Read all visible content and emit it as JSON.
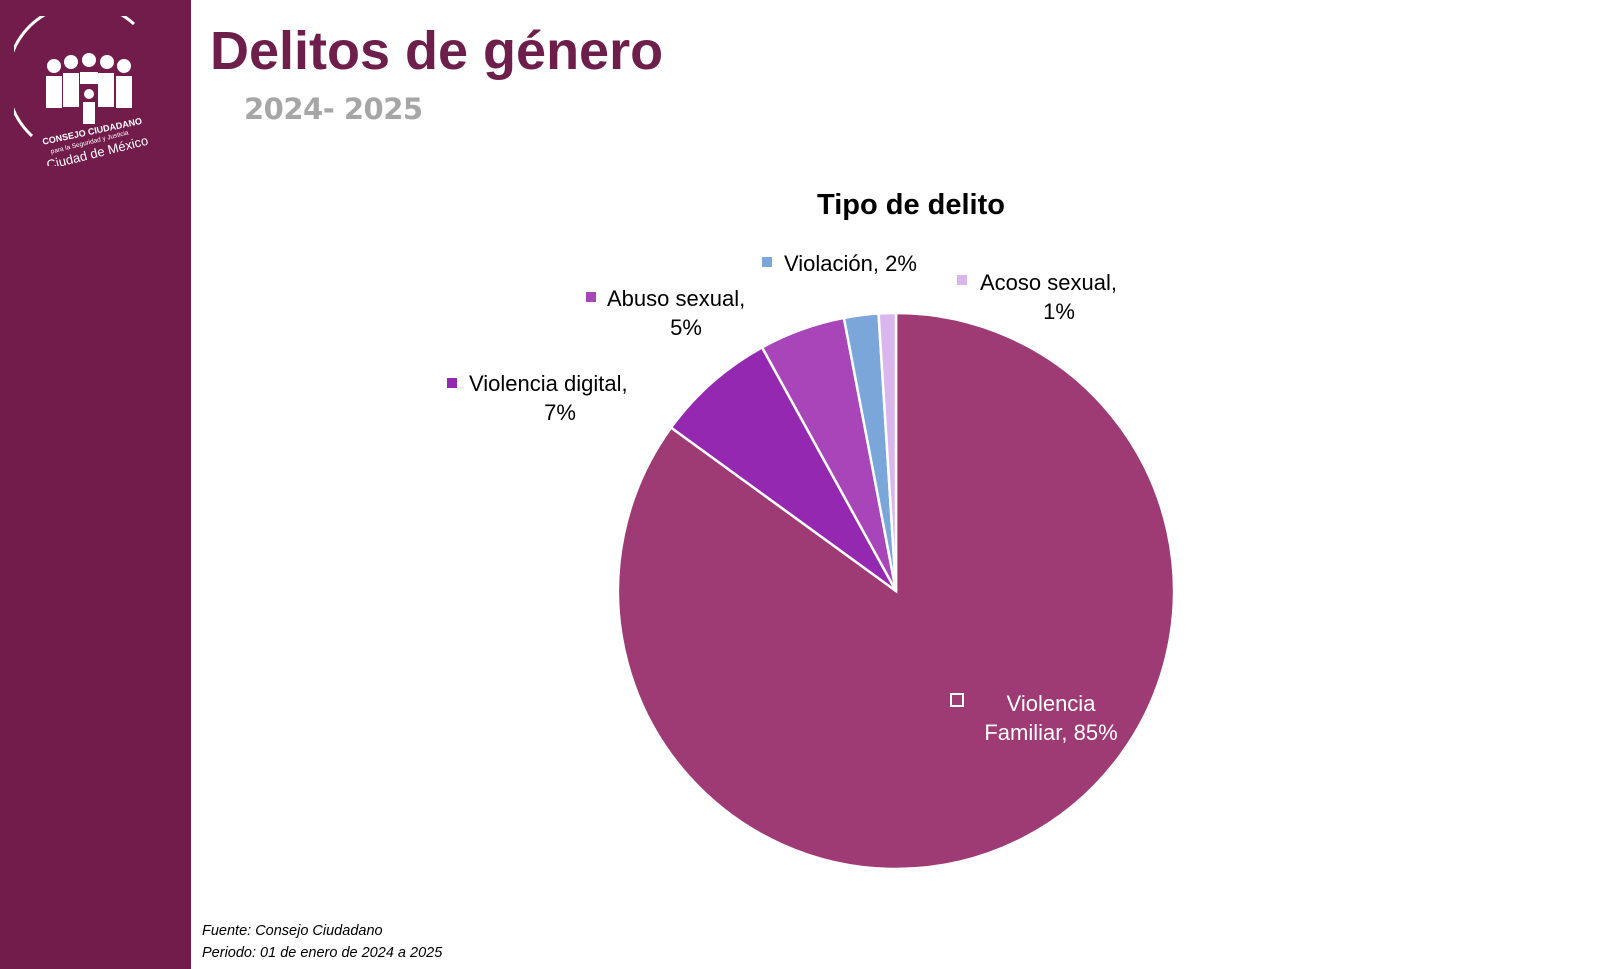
{
  "header": {
    "title": "Delitos de género",
    "subtitle": "2024- 2025"
  },
  "logo": {
    "line1": "CONSEJO CIUDADANO",
    "line2": "para la Seguridad y Justicia",
    "line3": "Ciudad de México"
  },
  "colors": {
    "sidebar": "#711c4b",
    "title": "#6e1e4b"
  },
  "chart_data": {
    "type": "pie",
    "title": "Tipo de delito",
    "start": "top, clockwise",
    "slices": [
      {
        "name": "Violencia Familiar",
        "value": 85,
        "label_lines": [
          "Violencia",
          "Familiar, 85%"
        ],
        "color": "#9e3a74",
        "label_color": "#ffffff"
      },
      {
        "name": "Violencia digital",
        "value": 7,
        "label_lines": [
          "Violencia digital,",
          "7%"
        ],
        "color": "#9528b0",
        "label_color": "#000000"
      },
      {
        "name": "Abuso sexual",
        "value": 5,
        "label_lines": [
          "Abuso sexual,",
          "5%"
        ],
        "color": "#a846b9",
        "label_color": "#000000"
      },
      {
        "name": "Violación",
        "value": 2,
        "label_lines": [
          "Violación, 2%"
        ],
        "color": "#7aa6d9",
        "label_color": "#000000"
      },
      {
        "name": "Acoso sexual",
        "value": 1,
        "label_lines": [
          "Acoso sexual,",
          "1%"
        ],
        "color": "#d9b6ec",
        "label_color": "#000000"
      }
    ]
  },
  "footer": {
    "source": "Fuente: Consejo Ciudadano",
    "period": "Periodo: 01 de enero de 2024 a 2025"
  }
}
